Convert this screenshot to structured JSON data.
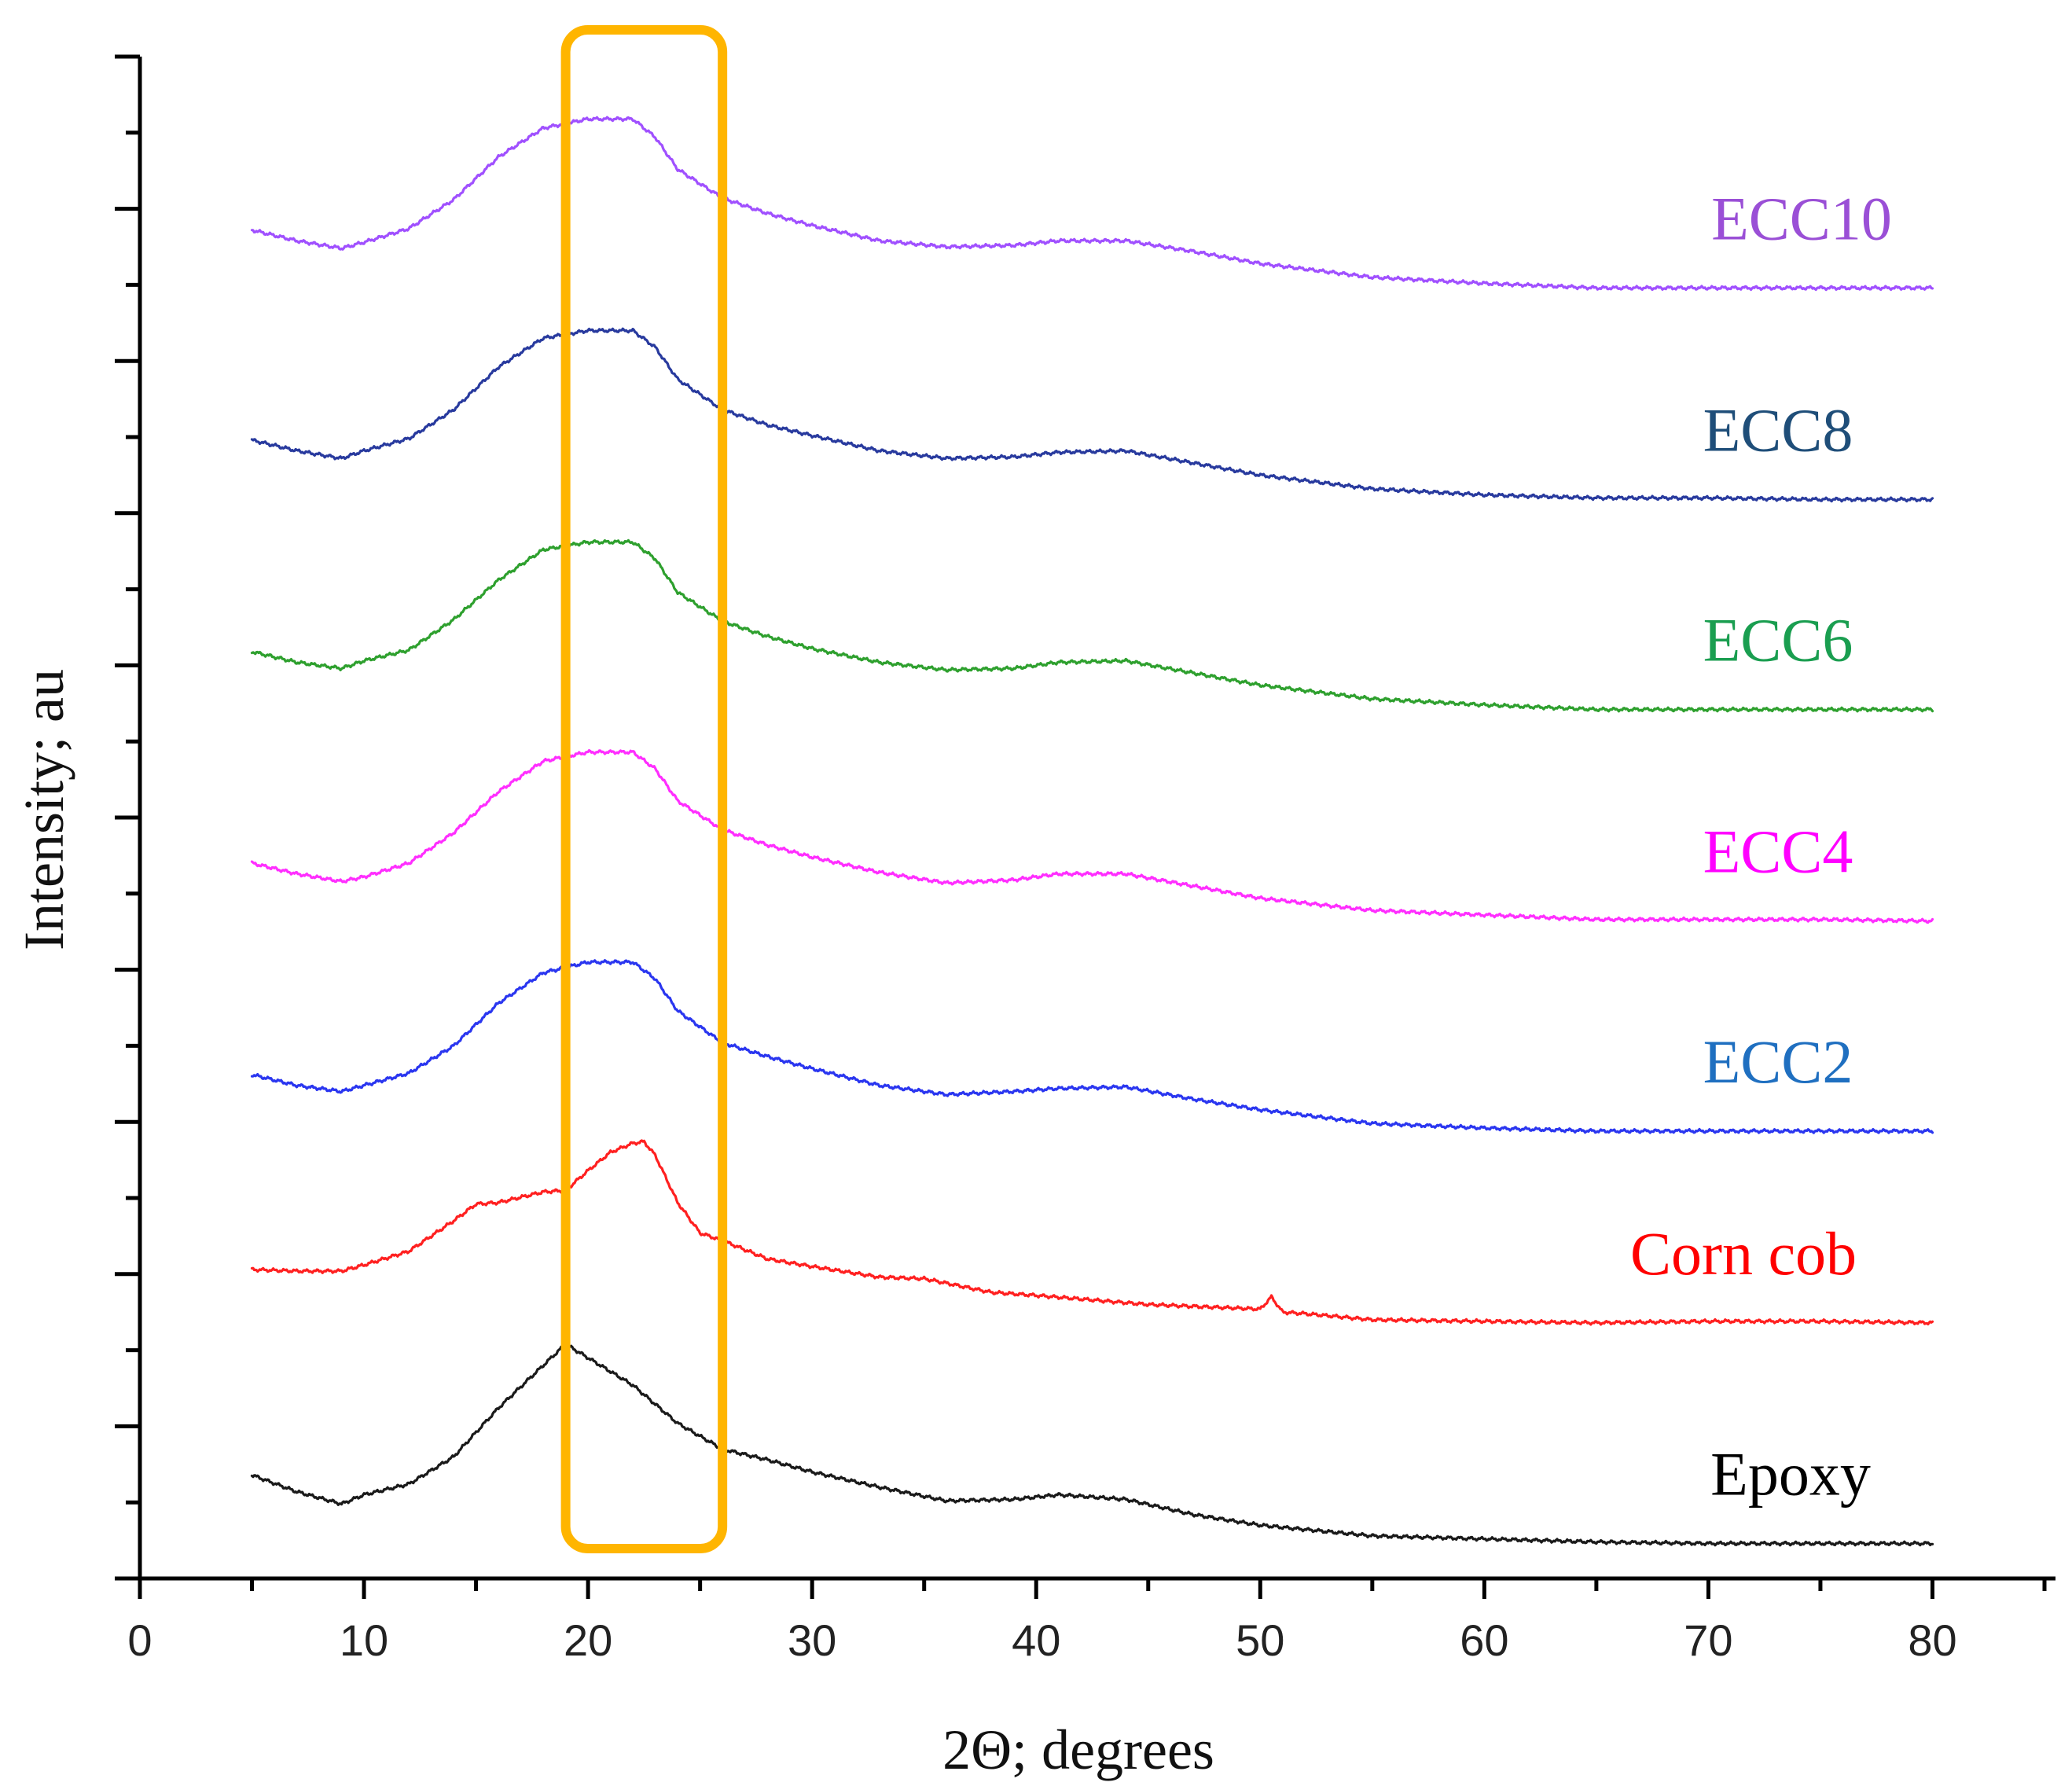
{
  "chart_data": {
    "type": "line",
    "title": "",
    "xlabel": "2Θ; degrees",
    "ylabel": "Intensity; au",
    "xlim": [
      0,
      85
    ],
    "xticks": [
      0,
      10,
      20,
      30,
      40,
      50,
      60,
      70,
      80
    ],
    "x_minor_step": 5,
    "ylim": [
      0,
      10
    ],
    "y_major_step": 1,
    "y_minor_step": 0.5,
    "y_tick_labels_shown": false,
    "grid": false,
    "highlight_region": {
      "x_start": 19,
      "x_end": 26,
      "color": "#FFB500"
    },
    "series": [
      {
        "name": "Epoxy",
        "color": "#1a1a1a",
        "label_color": "#000000",
        "x": [
          5,
          7,
          9,
          10,
          12,
          14,
          16,
          18,
          19,
          20,
          22,
          24,
          26,
          28,
          30,
          33,
          36,
          39,
          41,
          44,
          47,
          50,
          55,
          60,
          65,
          70,
          75,
          80
        ],
        "y": [
          0.68,
          0.57,
          0.49,
          0.55,
          0.62,
          0.8,
          1.12,
          1.4,
          1.54,
          1.45,
          1.27,
          1.02,
          0.85,
          0.78,
          0.7,
          0.6,
          0.51,
          0.52,
          0.55,
          0.52,
          0.42,
          0.35,
          0.28,
          0.26,
          0.24,
          0.23,
          0.23,
          0.23
        ]
      },
      {
        "name": "Corn cob",
        "color": "#ff2020",
        "label_color": "#ff0000",
        "x": [
          5,
          7,
          9,
          10,
          12,
          14,
          15,
          16,
          18,
          19,
          20,
          21,
          22,
          22.5,
          23,
          24,
          25,
          26,
          28,
          30,
          33,
          35,
          38,
          40,
          45,
          50,
          50.5,
          51,
          52,
          55,
          60,
          65,
          70,
          75,
          80
        ],
        "y": [
          2.03,
          2.02,
          2.02,
          2.06,
          2.15,
          2.35,
          2.46,
          2.47,
          2.54,
          2.55,
          2.68,
          2.8,
          2.86,
          2.87,
          2.78,
          2.47,
          2.27,
          2.22,
          2.1,
          2.05,
          1.98,
          1.97,
          1.88,
          1.86,
          1.8,
          1.77,
          1.85,
          1.75,
          1.74,
          1.7,
          1.69,
          1.68,
          1.69,
          1.69,
          1.68
        ]
      },
      {
        "name": "ECC2",
        "color": "#2a36f0",
        "label_color": "#1f6fc0",
        "x": [
          5,
          7,
          9,
          10,
          12,
          14,
          16,
          18,
          20,
          22,
          23,
          24,
          26,
          28,
          30,
          33,
          36,
          39,
          41,
          44,
          47,
          50,
          55,
          60,
          65,
          70,
          75,
          80
        ],
        "y": [
          3.31,
          3.24,
          3.2,
          3.24,
          3.32,
          3.5,
          3.78,
          3.98,
          4.05,
          4.05,
          3.94,
          3.73,
          3.52,
          3.43,
          3.35,
          3.24,
          3.18,
          3.2,
          3.22,
          3.23,
          3.15,
          3.08,
          2.99,
          2.96,
          2.94,
          2.94,
          2.94,
          2.94
        ]
      },
      {
        "name": "ECC4",
        "color": "#ff2eff",
        "label_color": "#ff00ff",
        "x": [
          5,
          7,
          9,
          10,
          12,
          14,
          16,
          18,
          20,
          22,
          23,
          24,
          26,
          28,
          30,
          33,
          36,
          39,
          41,
          44,
          47,
          50,
          55,
          60,
          65,
          70,
          75,
          80
        ],
        "y": [
          4.7,
          4.63,
          4.58,
          4.61,
          4.7,
          4.9,
          5.17,
          5.37,
          5.43,
          5.43,
          5.32,
          5.11,
          4.92,
          4.82,
          4.74,
          4.64,
          4.57,
          4.59,
          4.63,
          4.63,
          4.55,
          4.47,
          4.39,
          4.36,
          4.33,
          4.33,
          4.33,
          4.32
        ]
      },
      {
        "name": "ECC6",
        "color": "#2ea02e",
        "label_color": "#1a9e50",
        "x": [
          5,
          7,
          9,
          10,
          12,
          14,
          16,
          18,
          20,
          22,
          23,
          24,
          26,
          28,
          30,
          33,
          36,
          39,
          41,
          44,
          47,
          50,
          55,
          60,
          65,
          70,
          75,
          80
        ],
        "y": [
          6.09,
          6.02,
          5.98,
          6.03,
          6.1,
          6.3,
          6.56,
          6.76,
          6.81,
          6.81,
          6.7,
          6.48,
          6.29,
          6.19,
          6.11,
          6.02,
          5.97,
          5.98,
          6.02,
          6.03,
          5.95,
          5.87,
          5.78,
          5.74,
          5.71,
          5.71,
          5.71,
          5.71
        ]
      },
      {
        "name": "ECC8",
        "color": "#283a9e",
        "label_color": "#1f4e79",
        "x": [
          5,
          7,
          9,
          10,
          12,
          14,
          16,
          18,
          20,
          22,
          23,
          24,
          26,
          28,
          30,
          33,
          36,
          39,
          41,
          44,
          47,
          50,
          55,
          60,
          65,
          70,
          75,
          80
        ],
        "y": [
          7.48,
          7.41,
          7.36,
          7.41,
          7.49,
          7.68,
          7.96,
          8.15,
          8.2,
          8.2,
          8.09,
          7.88,
          7.68,
          7.58,
          7.51,
          7.41,
          7.36,
          7.37,
          7.4,
          7.41,
          7.33,
          7.25,
          7.16,
          7.12,
          7.1,
          7.1,
          7.09,
          7.09
        ]
      },
      {
        "name": "ECC10",
        "color": "#a050ff",
        "label_color": "#9a4fd6",
        "x": [
          5,
          7,
          9,
          10,
          12,
          14,
          16,
          18,
          20,
          22,
          23,
          24,
          26,
          28,
          30,
          33,
          36,
          39,
          41,
          44,
          47,
          50,
          55,
          60,
          65,
          70,
          75,
          80
        ],
        "y": [
          8.86,
          8.79,
          8.74,
          8.78,
          8.87,
          9.06,
          9.34,
          9.53,
          9.59,
          9.59,
          9.47,
          9.26,
          9.07,
          8.97,
          8.89,
          8.79,
          8.75,
          8.76,
          8.79,
          8.79,
          8.72,
          8.64,
          8.55,
          8.51,
          8.48,
          8.48,
          8.48,
          8.48
        ]
      }
    ]
  }
}
